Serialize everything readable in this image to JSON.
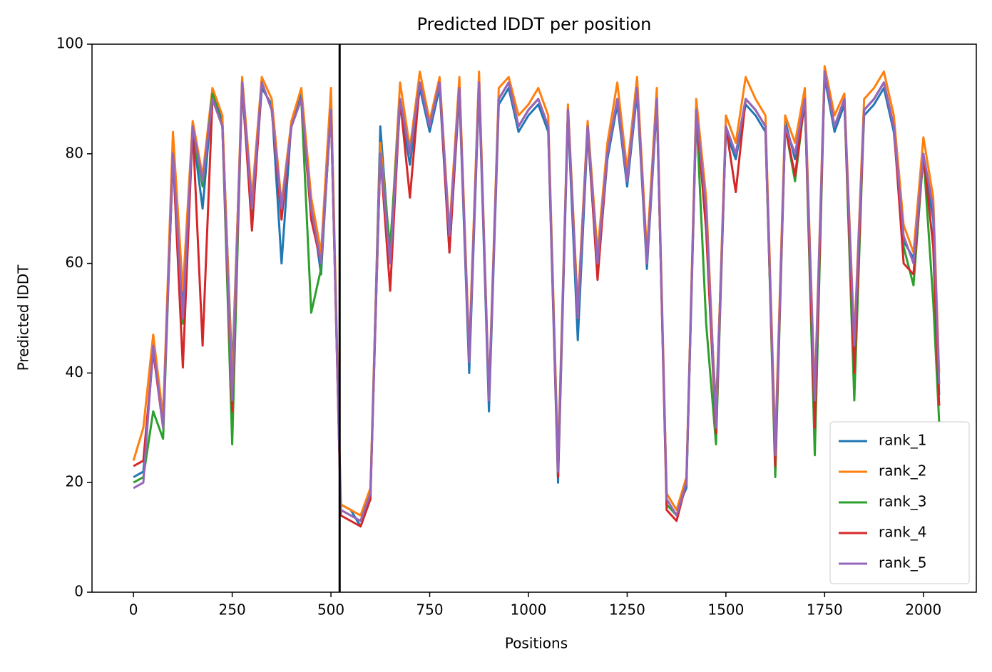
{
  "chart_data": {
    "type": "line",
    "title": "Predicted lDDT per position",
    "xlabel": "Positions",
    "ylabel": "Predicted lDDT",
    "x": [
      0,
      25,
      50,
      75,
      100,
      125,
      150,
      175,
      200,
      225,
      250,
      275,
      300,
      325,
      350,
      375,
      400,
      425,
      450,
      475,
      500,
      525,
      550,
      575,
      600,
      625,
      650,
      675,
      700,
      725,
      750,
      775,
      800,
      825,
      850,
      875,
      900,
      925,
      950,
      975,
      1000,
      1025,
      1050,
      1075,
      1100,
      1125,
      1150,
      1175,
      1200,
      1225,
      1250,
      1275,
      1300,
      1325,
      1350,
      1375,
      1400,
      1425,
      1450,
      1475,
      1500,
      1525,
      1550,
      1575,
      1600,
      1625,
      1650,
      1675,
      1700,
      1725,
      1750,
      1775,
      1800,
      1825,
      1850,
      1875,
      1900,
      1925,
      1950,
      1975,
      2000,
      2025,
      2040
    ],
    "series": [
      {
        "name": "rank_1",
        "color": "#1f77b4",
        "values": [
          21,
          22,
          44,
          31,
          79,
          52,
          84,
          70,
          91,
          86,
          40,
          92,
          68,
          92,
          89,
          60,
          86,
          91,
          71,
          58,
          89,
          16,
          15,
          12,
          17,
          85,
          61,
          89,
          78,
          92,
          84,
          92,
          62,
          91,
          40,
          92,
          33,
          89,
          92,
          84,
          87,
          89,
          84,
          20,
          87,
          46,
          84,
          58,
          79,
          89,
          74,
          91,
          59,
          89,
          18,
          15,
          19,
          87,
          68,
          33,
          84,
          79,
          89,
          87,
          84,
          24,
          86,
          79,
          89,
          34,
          94,
          84,
          89,
          44,
          87,
          89,
          92,
          84,
          64,
          61,
          79,
          68,
          36
        ]
      },
      {
        "name": "rank_2",
        "color": "#ff7f0e",
        "values": [
          24,
          30,
          47,
          32,
          84,
          55,
          86,
          76,
          92,
          87,
          38,
          94,
          72,
          94,
          90,
          71,
          86,
          92,
          72,
          62,
          92,
          16,
          15,
          14,
          19,
          82,
          62,
          93,
          81,
          95,
          86,
          94,
          66,
          94,
          44,
          95,
          36,
          92,
          94,
          87,
          89,
          92,
          87,
          24,
          89,
          52,
          86,
          62,
          82,
          93,
          77,
          94,
          62,
          92,
          18,
          15,
          21,
          90,
          72,
          31,
          87,
          82,
          94,
          90,
          87,
          27,
          87,
          82,
          92,
          36,
          96,
          87,
          91,
          46,
          90,
          92,
          95,
          87,
          67,
          62,
          83,
          72,
          40
        ]
      },
      {
        "name": "rank_3",
        "color": "#2ca02c",
        "values": [
          20,
          21,
          33,
          28,
          80,
          49,
          84,
          74,
          91,
          85,
          27,
          93,
          69,
          93,
          88,
          69,
          85,
          90,
          51,
          59,
          88,
          15,
          14,
          13,
          18,
          80,
          63,
          90,
          80,
          93,
          85,
          93,
          64,
          92,
          42,
          93,
          35,
          90,
          93,
          85,
          88,
          90,
          85,
          22,
          88,
          50,
          85,
          60,
          80,
          90,
          75,
          92,
          60,
          90,
          16,
          14,
          20,
          88,
          49,
          27,
          85,
          80,
          90,
          88,
          85,
          21,
          85,
          75,
          90,
          25,
          95,
          85,
          90,
          35,
          88,
          90,
          93,
          85,
          63,
          56,
          80,
          53,
          31
        ]
      },
      {
        "name": "rank_4",
        "color": "#d62728",
        "values": [
          23,
          24,
          44,
          30,
          80,
          41,
          85,
          45,
          90,
          85,
          33,
          93,
          66,
          93,
          88,
          68,
          85,
          90,
          68,
          60,
          88,
          14,
          13,
          12,
          17,
          80,
          55,
          90,
          72,
          93,
          85,
          93,
          62,
          92,
          42,
          93,
          35,
          90,
          93,
          85,
          88,
          90,
          85,
          21,
          88,
          50,
          85,
          57,
          80,
          90,
          75,
          92,
          60,
          90,
          15,
          13,
          20,
          88,
          66,
          29,
          85,
          73,
          90,
          88,
          85,
          23,
          85,
          76,
          90,
          30,
          95,
          85,
          90,
          40,
          88,
          90,
          93,
          85,
          60,
          58,
          80,
          63,
          34
        ]
      },
      {
        "name": "rank_5",
        "color": "#9467bd",
        "values": [
          19,
          20,
          45,
          30,
          80,
          50,
          85,
          75,
          90,
          85,
          35,
          93,
          70,
          93,
          88,
          70,
          85,
          90,
          70,
          60,
          88,
          15,
          14,
          13,
          18,
          80,
          60,
          90,
          80,
          93,
          85,
          93,
          65,
          92,
          42,
          93,
          35,
          90,
          93,
          85,
          88,
          90,
          85,
          22,
          88,
          50,
          85,
          60,
          80,
          90,
          75,
          92,
          60,
          90,
          17,
          14,
          20,
          88,
          70,
          30,
          85,
          80,
          90,
          88,
          85,
          25,
          85,
          80,
          90,
          35,
          95,
          85,
          90,
          45,
          88,
          90,
          93,
          85,
          65,
          60,
          80,
          70,
          38
        ]
      }
    ],
    "vline": 522,
    "vline_color": "#000000",
    "xlim": [
      -105,
      2134
    ],
    "ylim": [
      0,
      100
    ],
    "xticks": [
      0,
      250,
      500,
      750,
      1000,
      1250,
      1500,
      1750,
      2000
    ],
    "yticks": [
      0,
      20,
      40,
      60,
      80,
      100
    ],
    "legend": "lower right"
  }
}
